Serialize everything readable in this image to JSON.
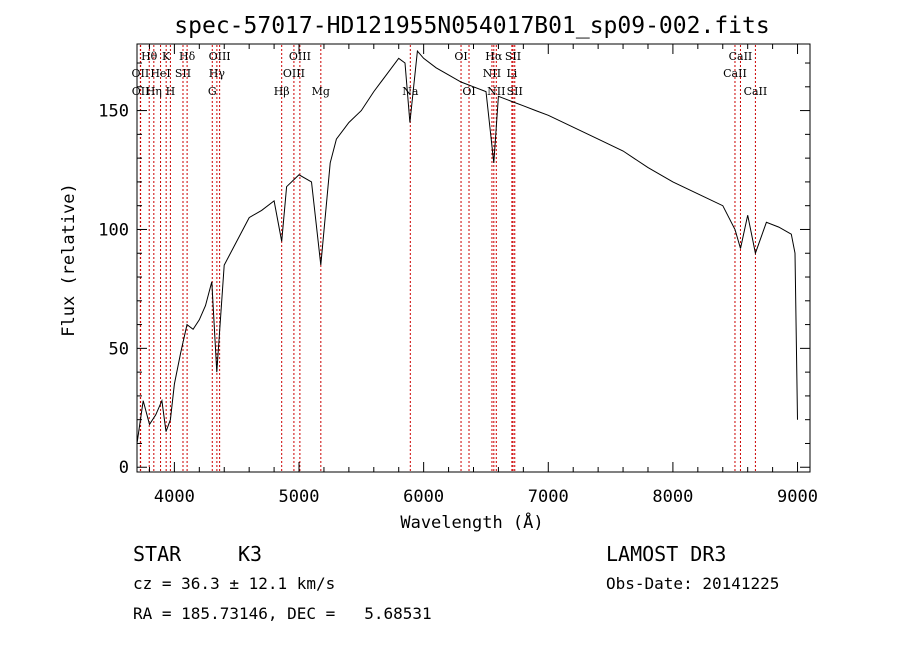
{
  "chart_data": {
    "type": "line",
    "title": "spec-57017-HD121955N054017B01_sp09-002.fits",
    "xlabel": "Wavelength (Å)",
    "ylabel": "Flux (relative)",
    "xlim": [
      3700,
      9100
    ],
    "ylim": [
      -2,
      178
    ],
    "xticks": [
      4000,
      5000,
      6000,
      7000,
      8000,
      9000
    ],
    "yticks": [
      0,
      50,
      100,
      150
    ],
    "x_tick_labels": [
      "4000",
      "5000",
      "6000",
      "7000",
      "8000",
      "9000"
    ],
    "y_tick_labels": [
      "0",
      "50",
      "100",
      "150"
    ],
    "series": [
      {
        "name": "spectrum",
        "x": [
          3700,
          3750,
          3800,
          3850,
          3900,
          3933,
          3968,
          4000,
          4050,
          4101,
          4150,
          4200,
          4250,
          4300,
          4340,
          4400,
          4500,
          4600,
          4700,
          4800,
          4861,
          4900,
          5000,
          5100,
          5175,
          5250,
          5300,
          5400,
          5500,
          5600,
          5700,
          5800,
          5850,
          5890,
          5950,
          6000,
          6100,
          6200,
          6300,
          6400,
          6500,
          6563,
          6600,
          6700,
          6800,
          6900,
          7000,
          7200,
          7400,
          7600,
          7800,
          8000,
          8200,
          8400,
          8498,
          8542,
          8600,
          8662,
          8750,
          8850,
          8950,
          8980,
          9000
        ],
        "y": [
          10,
          28,
          18,
          22,
          28,
          15,
          20,
          35,
          48,
          60,
          58,
          62,
          68,
          78,
          40,
          85,
          95,
          105,
          108,
          112,
          95,
          118,
          123,
          120,
          85,
          128,
          138,
          145,
          150,
          158,
          165,
          172,
          170,
          145,
          175,
          172,
          168,
          165,
          162,
          160,
          158,
          128,
          156,
          154,
          152,
          150,
          148,
          143,
          138,
          133,
          126,
          120,
          115,
          110,
          100,
          92,
          106,
          90,
          103,
          101,
          98,
          90,
          20
        ]
      }
    ],
    "line_identifications": {
      "row1": [
        {
          "label": "Hθ",
          "wavelength": 3798
        },
        {
          "label": "K",
          "wavelength": 3934
        },
        {
          "label": "Hδ",
          "wavelength": 4102
        },
        {
          "label": "OIII",
          "wavelength": 4363
        },
        {
          "label": "OIII",
          "wavelength": 5007
        },
        {
          "label": "OI",
          "wavelength": 6300
        },
        {
          "label": "Hα",
          "wavelength": 6563
        },
        {
          "label": "SII",
          "wavelength": 6717
        },
        {
          "label": "CaII",
          "wavelength": 8542
        }
      ],
      "row2": [
        {
          "label": "OII",
          "wavelength": 3727
        },
        {
          "label": "HeI",
          "wavelength": 3889
        },
        {
          "label": "SII",
          "wavelength": 4069
        },
        {
          "label": "Hγ",
          "wavelength": 4341
        },
        {
          "label": "OIII",
          "wavelength": 4959
        },
        {
          "label": "NII",
          "wavelength": 6548
        },
        {
          "label": "Li",
          "wavelength": 6708
        },
        {
          "label": "CaII",
          "wavelength": 8498
        }
      ],
      "row3": [
        {
          "label": "OII",
          "wavelength": 3729
        },
        {
          "label": "Hη",
          "wavelength": 3835
        },
        {
          "label": "H",
          "wavelength": 3968
        },
        {
          "label": "G",
          "wavelength": 4304
        },
        {
          "label": "Hβ",
          "wavelength": 4861
        },
        {
          "label": "Mg",
          "wavelength": 5175
        },
        {
          "label": "Na",
          "wavelength": 5893
        },
        {
          "label": "OI",
          "wavelength": 6364
        },
        {
          "label": "NII",
          "wavelength": 6583
        },
        {
          "label": "SII",
          "wavelength": 6731
        },
        {
          "label": "CaII",
          "wavelength": 8662
        }
      ]
    }
  },
  "info": {
    "object_class": "STAR",
    "subclass": "K3",
    "survey": "LAMOST DR3",
    "redshift": "cz = 36.3 ± 12.1 km/s",
    "obs_date": "Obs-Date: 20141225",
    "coordinates": "RA = 185.73146, DEC =   5.68531"
  },
  "colors": {
    "axes": "#000000",
    "spectrum": "#000000",
    "line_markers": "#cc0000"
  }
}
